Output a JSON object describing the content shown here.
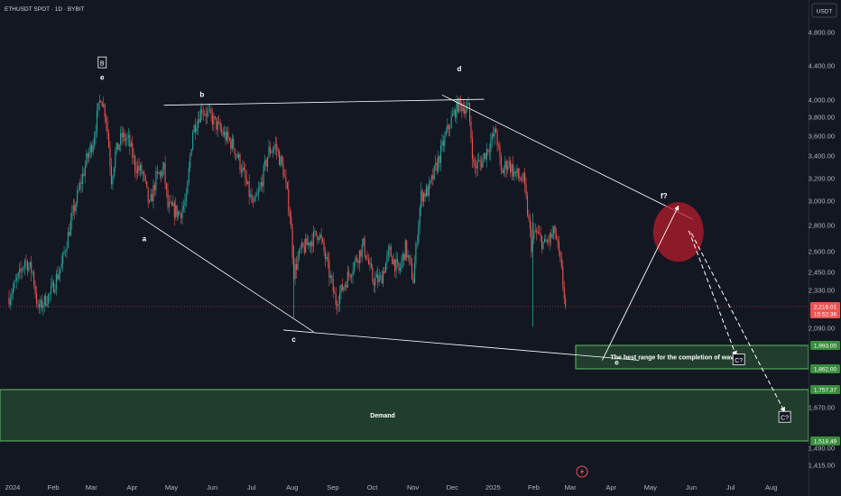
{
  "symbol_title": "ETHUSDT SPOT · 1D · BYBIT",
  "currency_button": "USDT",
  "colors": {
    "background": "#131722",
    "up": "#26a69a",
    "down": "#ef5350",
    "zone_fill": "#4caf50",
    "zone_border": "#66bb6a",
    "circle": "#b71c2c",
    "axis_text": "#b2b5be",
    "line": "#ffffff"
  },
  "chart_data": {
    "type": "candlestick",
    "price_axis_ticks": [
      {
        "value": 4800,
        "label": "4,800.00"
      },
      {
        "value": 4400,
        "label": "4,400.00"
      },
      {
        "value": 4000,
        "label": "4,000.00"
      },
      {
        "value": 3800,
        "label": "3,800.00"
      },
      {
        "value": 3600,
        "label": "3,600.00"
      },
      {
        "value": 3400,
        "label": "3,400.00"
      },
      {
        "value": 3200,
        "label": "3,200.00"
      },
      {
        "value": 3000,
        "label": "3,000.00"
      },
      {
        "value": 2800,
        "label": "2,800.00"
      },
      {
        "value": 2600,
        "label": "2,600.00"
      },
      {
        "value": 2450,
        "label": "2,450.00"
      },
      {
        "value": 2330,
        "label": "2,330.00"
      },
      {
        "value": 2090,
        "label": "2,090.00"
      },
      {
        "value": 1670,
        "label": "1,670.00"
      },
      {
        "value": 1490,
        "label": "1,490.00"
      },
      {
        "value": 1415,
        "label": "1,415.00"
      }
    ],
    "time_axis_ticks": [
      "2024",
      "Feb",
      "Mar",
      "Apr",
      "May",
      "Jun",
      "Jul",
      "Aug",
      "Sep",
      "Oct",
      "Nov",
      "Dec",
      "2025",
      "Feb",
      "Mar",
      "Apr",
      "May",
      "Jun",
      "Jul",
      "Aug"
    ],
    "price_badges": [
      {
        "value": 2216.01,
        "label": "2,216.01",
        "sublabel": "15:52:36",
        "color": "#ef5350"
      },
      {
        "value": 1993.0,
        "label": "1,993.00",
        "color": "#388e3c"
      },
      {
        "value": 1862.0,
        "label": "1,862.00",
        "color": "#388e3c"
      },
      {
        "value": 1757.37,
        "label": "1,757.37",
        "color": "#388e3c"
      },
      {
        "value": 1518.49,
        "label": "1,518.49",
        "color": "#388e3c"
      }
    ],
    "zones": [
      {
        "label": "The best range for the completion of wave E",
        "top": 1993.0,
        "bottom": 1862.0
      },
      {
        "label": "Demand",
        "top": 1757.37,
        "bottom": 1518.49
      }
    ],
    "wave_labels": [
      {
        "text": "B",
        "boxed": true,
        "date": "2024-03-12",
        "price": 4420
      },
      {
        "text": "e",
        "date": "2024-03-12",
        "price": 4270
      },
      {
        "text": "a",
        "date": "2024-04-13",
        "price": 2700
      },
      {
        "text": "b",
        "date": "2024-05-27",
        "price": 4070
      },
      {
        "text": "c",
        "date": "2024-08-05",
        "price": 2030
      },
      {
        "text": "d",
        "date": "2024-12-09",
        "price": 4370
      },
      {
        "text": "e",
        "date": "2025-04-08",
        "price": 1900
      },
      {
        "text": "f?",
        "date": "2025-05-14",
        "price": 3050
      },
      {
        "text": "C?",
        "boxed": true,
        "date": "2025-07-10",
        "price": 1905
      },
      {
        "text": "C?",
        "boxed": true,
        "date": "2025-08-14",
        "price": 1620
      }
    ],
    "price_path": [
      [
        "2024-01-01",
        2280
      ],
      [
        "2024-01-10",
        2450
      ],
      [
        "2024-01-13",
        2540
      ],
      [
        "2024-01-19",
        2450
      ],
      [
        "2024-01-23",
        2200
      ],
      [
        "2024-02-01",
        2300
      ],
      [
        "2024-02-10",
        2500
      ],
      [
        "2024-02-20",
        2950
      ],
      [
        "2024-02-29",
        3360
      ],
      [
        "2024-03-05",
        3550
      ],
      [
        "2024-03-11",
        4060
      ],
      [
        "2024-03-15",
        3800
      ],
      [
        "2024-03-19",
        3200
      ],
      [
        "2024-03-22",
        3420
      ],
      [
        "2024-03-27",
        3600
      ],
      [
        "2024-04-01",
        3550
      ],
      [
        "2024-04-06",
        3320
      ],
      [
        "2024-04-12",
        3240
      ],
      [
        "2024-04-17",
        2950
      ],
      [
        "2024-04-22",
        3200
      ],
      [
        "2024-04-28",
        3280
      ],
      [
        "2024-05-01",
        2950
      ],
      [
        "2024-05-10",
        2900
      ],
      [
        "2024-05-15",
        3000
      ],
      [
        "2024-05-20",
        3660
      ],
      [
        "2024-05-27",
        3900
      ],
      [
        "2024-06-04",
        3780
      ],
      [
        "2024-06-10",
        3660
      ],
      [
        "2024-06-20",
        3500
      ],
      [
        "2024-06-26",
        3300
      ],
      [
        "2024-07-05",
        2950
      ],
      [
        "2024-07-10",
        3100
      ],
      [
        "2024-07-17",
        3450
      ],
      [
        "2024-07-22",
        3500
      ],
      [
        "2024-07-28",
        3270
      ],
      [
        "2024-08-02",
        2900
      ],
      [
        "2024-08-05",
        2450
      ],
      [
        "2024-08-10",
        2600
      ],
      [
        "2024-08-24",
        2750
      ],
      [
        "2024-08-30",
        2520
      ],
      [
        "2024-09-06",
        2250
      ],
      [
        "2024-09-15",
        2420
      ],
      [
        "2024-09-27",
        2650
      ],
      [
        "2024-10-04",
        2400
      ],
      [
        "2024-10-10",
        2400
      ],
      [
        "2024-10-17",
        2600
      ],
      [
        "2024-10-24",
        2450
      ],
      [
        "2024-10-29",
        2630
      ],
      [
        "2024-11-04",
        2400
      ],
      [
        "2024-11-10",
        3050
      ],
      [
        "2024-11-16",
        3100
      ],
      [
        "2024-11-24",
        3400
      ],
      [
        "2024-12-01",
        3700
      ],
      [
        "2024-12-08",
        3950
      ],
      [
        "2024-12-16",
        3900
      ],
      [
        "2024-12-20",
        3300
      ],
      [
        "2024-12-26",
        3350
      ],
      [
        "2025-01-06",
        3650
      ],
      [
        "2025-01-10",
        3250
      ],
      [
        "2025-01-15",
        3350
      ],
      [
        "2025-01-20",
        3250
      ],
      [
        "2025-01-27",
        3180
      ],
      [
        "2025-02-02",
        2650
      ],
      [
        "2025-02-05",
        2750
      ],
      [
        "2025-02-12",
        2650
      ],
      [
        "2025-02-20",
        2750
      ],
      [
        "2025-02-25",
        2450
      ],
      [
        "2025-02-28",
        2216
      ]
    ]
  }
}
